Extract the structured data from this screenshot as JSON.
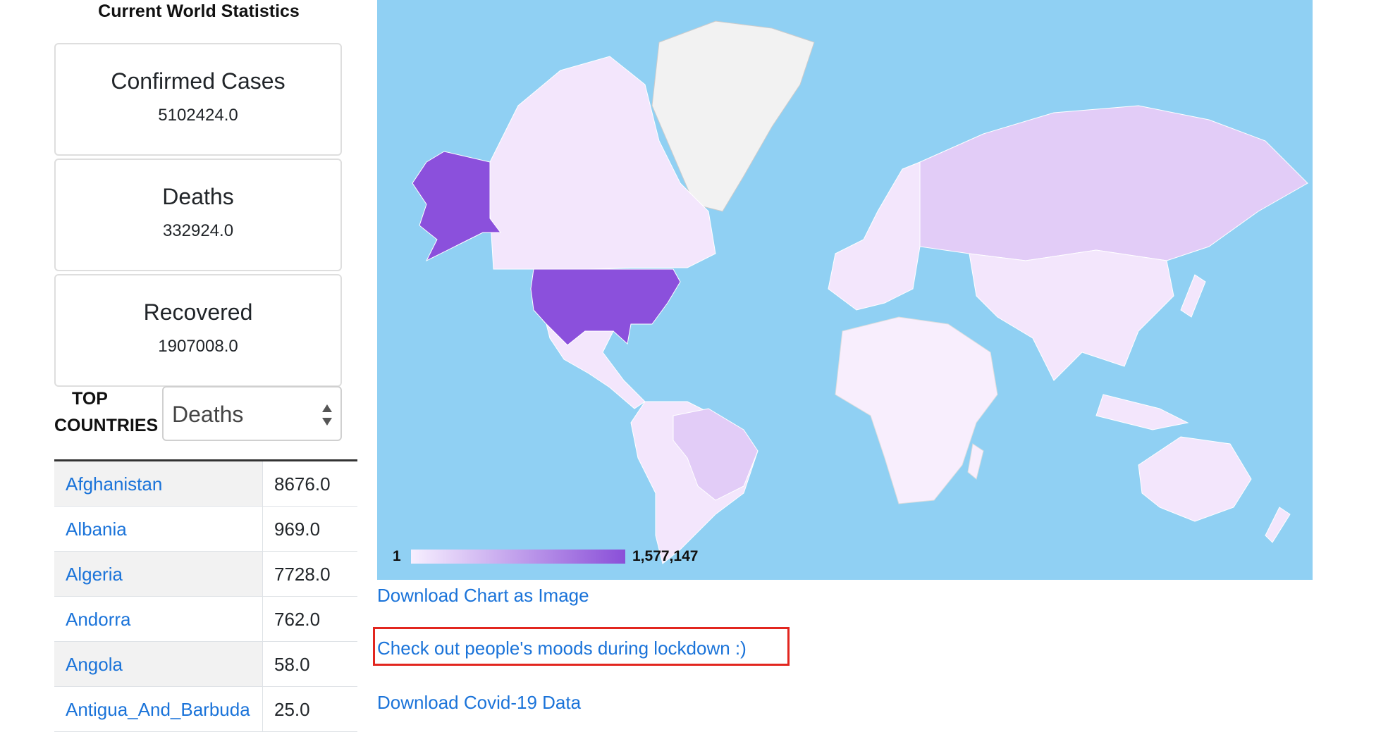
{
  "stats": {
    "title": "Current World Statistics",
    "cards": [
      {
        "label": "Confirmed Cases",
        "value": "5102424.0"
      },
      {
        "label": "Deaths",
        "value": "332924.0"
      },
      {
        "label": "Recovered",
        "value": "1907008.0"
      }
    ]
  },
  "top_countries": {
    "label_line1": "TOP",
    "label_line2": "COUNTRIES",
    "selected": "Deaths",
    "rows": [
      {
        "country": "Afghanistan",
        "value": "8676.0"
      },
      {
        "country": "Albania",
        "value": "969.0"
      },
      {
        "country": "Algeria",
        "value": "7728.0"
      },
      {
        "country": "Andorra",
        "value": "762.0"
      },
      {
        "country": "Angola",
        "value": "58.0"
      },
      {
        "country": "Antigua_And_Barbuda",
        "value": "25.0"
      }
    ]
  },
  "map": {
    "legend_min": "1",
    "legend_max": "1,577,147",
    "ocean_color": "#90d0f3",
    "low_color": "#f7efff",
    "high_color": "#8a4fd8"
  },
  "links": {
    "download_chart": "Download Chart as Image",
    "moods": "Check out people's moods during lockdown :)",
    "download_data": "Download Covid-19 Data"
  },
  "colors": {
    "link": "#1a73d9",
    "highlight": "#e2261f"
  }
}
